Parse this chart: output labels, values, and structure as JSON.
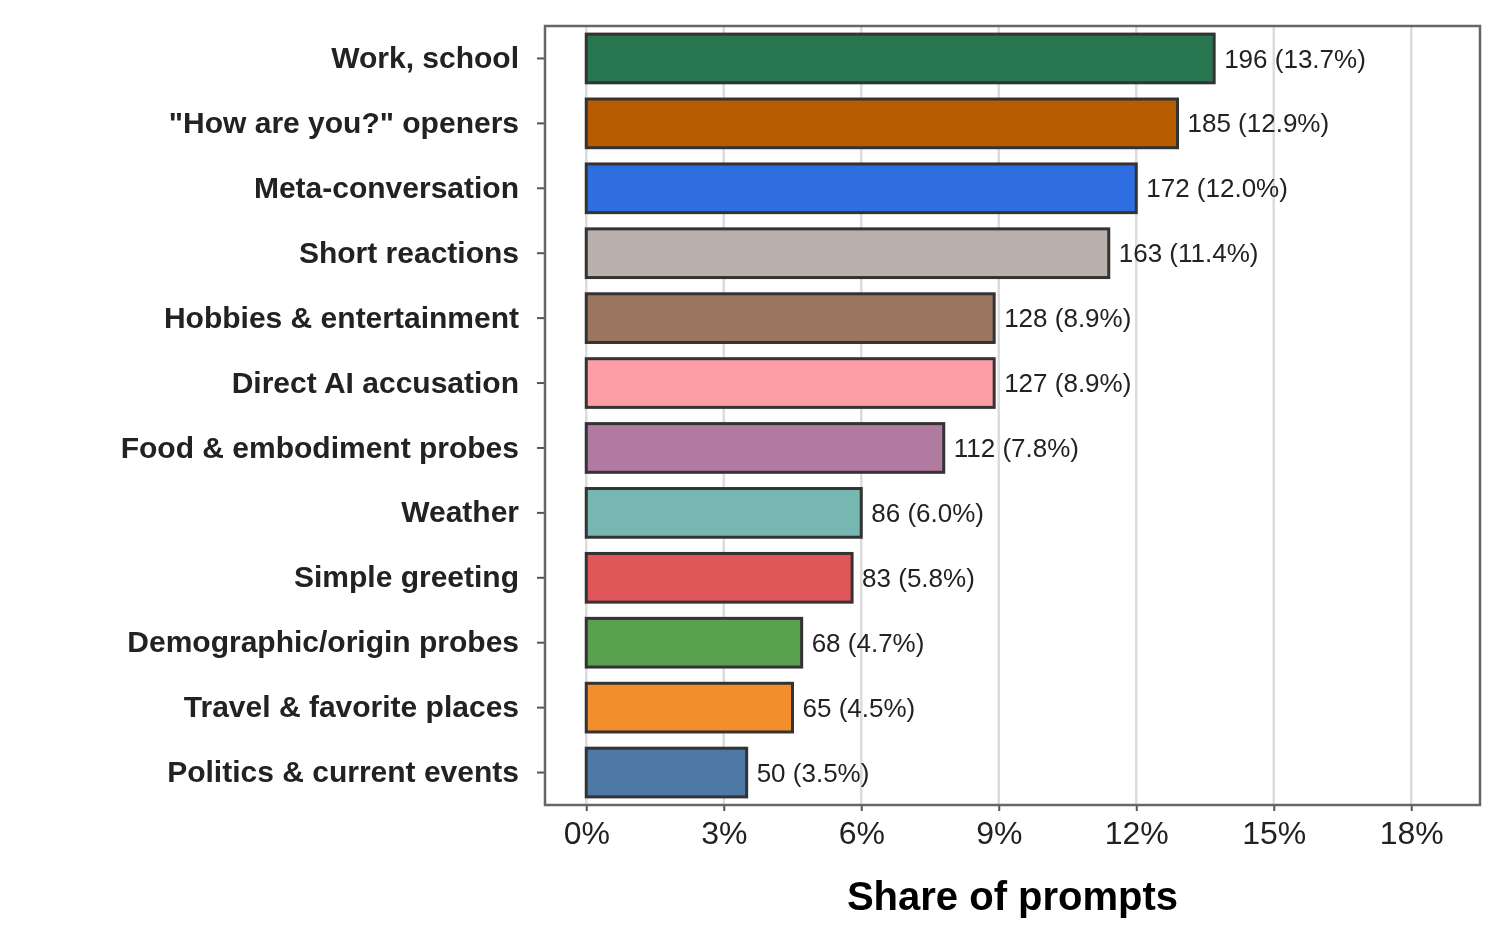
{
  "chart_data": {
    "type": "bar",
    "orientation": "horizontal",
    "xlabel": "Share of prompts",
    "categories": [
      "Work, school",
      "\"How are you?\" openers",
      "Meta-conversation",
      "Short reactions",
      "Hobbies & entertainment",
      "Direct AI accusation",
      "Food & embodiment probes",
      "Weather",
      "Simple greeting",
      "Demographic/origin probes",
      "Travel & favorite places",
      "Politics & current events"
    ],
    "values": [
      13.7,
      12.9,
      12.0,
      11.4,
      8.9,
      8.9,
      7.8,
      6.0,
      5.8,
      4.7,
      4.5,
      3.5
    ],
    "value_labels": [
      "196 (13.7%)",
      "185 (12.9%)",
      "172 (12.0%)",
      "163 (11.4%)",
      "128 (8.9%)",
      "127 (8.9%)",
      "112 (7.8%)",
      "86 (6.0%)",
      "83 (5.8%)",
      "68 (4.7%)",
      "65 (4.5%)",
      "50 (3.5%)"
    ],
    "colors": [
      "#277650",
      "#b85c00",
      "#2f6ee0",
      "#bab0ab",
      "#9c755f",
      "#ff9da7",
      "#b07aa1",
      "#76b7b2",
      "#e15759",
      "#59a14f",
      "#f28e2b",
      "#4e79a7"
    ],
    "xlim": [
      -0.9,
      19.5
    ],
    "xticks": [
      {
        "value": 0,
        "label": "0%"
      },
      {
        "value": 3,
        "label": "3%"
      },
      {
        "value": 6,
        "label": "6%"
      },
      {
        "value": 9,
        "label": "9%"
      },
      {
        "value": 12,
        "label": "12%"
      },
      {
        "value": 15,
        "label": "15%"
      },
      {
        "value": 18,
        "label": "18%"
      }
    ],
    "grid": "x"
  }
}
